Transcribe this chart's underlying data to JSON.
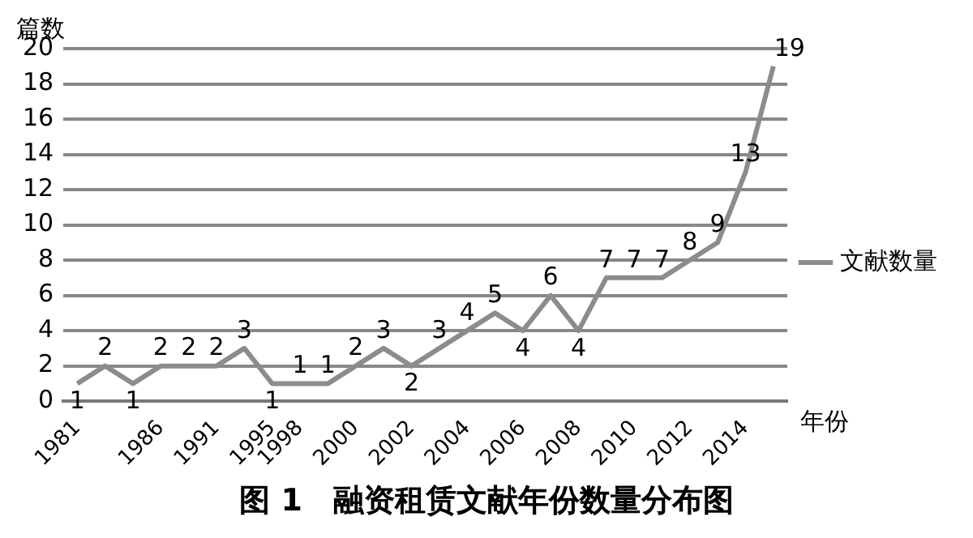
{
  "chart_data": {
    "type": "line",
    "title": "图 1　融资租赁文献年份数量分布图",
    "xlabel": "年份",
    "ylabel": "篇数",
    "categories": [
      "1981",
      null,
      null,
      "1986",
      null,
      "1991",
      null,
      "1995",
      "1998",
      null,
      "2000",
      null,
      "2002",
      null,
      "2004",
      null,
      "2006",
      null,
      "2008",
      null,
      "2010",
      null,
      "2012",
      null,
      "2014",
      null
    ],
    "series": [
      {
        "name": "文献数量",
        "color": "#8c8c8c",
        "values": [
          1,
          2,
          1,
          2,
          2,
          2,
          3,
          1,
          1,
          1,
          2,
          3,
          2,
          3,
          4,
          5,
          4,
          6,
          4,
          7,
          7,
          7,
          8,
          9,
          13,
          19
        ]
      }
    ],
    "ylim": [
      0,
      20
    ],
    "yticks": [
      0,
      2,
      4,
      6,
      8,
      10,
      12,
      14,
      16,
      18,
      20
    ],
    "grid": "y",
    "legend": "right",
    "marker": "none",
    "line_style": "solid",
    "data_labels": true
  }
}
